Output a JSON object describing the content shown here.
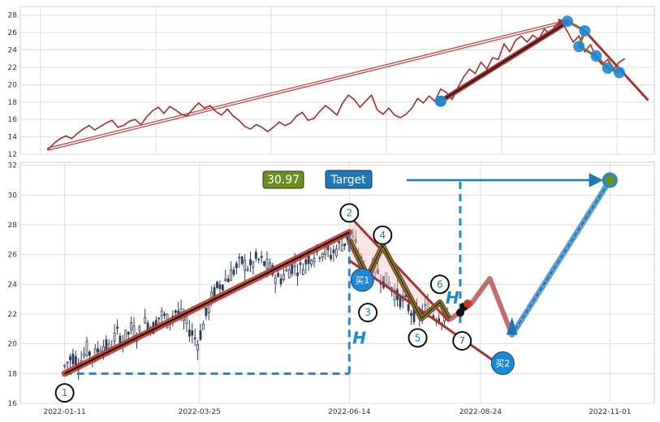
{
  "chart_data": [
    {
      "type": "line",
      "panel": "overview",
      "ylim": [
        12,
        29
      ],
      "yticks": [
        12,
        14,
        16,
        18,
        20,
        22,
        24,
        26,
        28
      ],
      "price": [
        12.6,
        13.3,
        13.8,
        14.1,
        13.8,
        14.4,
        14.9,
        15.3,
        14.8,
        15.2,
        15.6,
        15.9,
        15.1,
        15.3,
        15.8,
        16.0,
        15.4,
        16.3,
        17.0,
        17.4,
        16.7,
        17.5,
        17.1,
        16.6,
        16.4,
        17.2,
        17.9,
        17.3,
        17.6,
        16.9,
        16.5,
        17.2,
        16.4,
        15.9,
        15.2,
        14.9,
        15.4,
        15.1,
        14.6,
        15.1,
        15.7,
        15.3,
        15.6,
        16.4,
        16.8,
        15.9,
        16.1,
        16.9,
        17.6,
        17.1,
        16.5,
        17.9,
        18.8,
        18.3,
        17.4,
        18.1,
        18.8,
        17.1,
        16.6,
        17.3,
        16.5,
        16.2,
        16.6,
        17.3,
        18.4,
        17.9,
        18.7,
        18.1,
        19.5,
        19.1,
        18.3,
        19.7,
        20.9,
        21.8,
        21.3,
        22.6,
        21.8,
        23.1,
        22.9,
        24.7,
        23.8,
        25.1,
        25.6,
        24.9,
        25.7,
        25.2,
        26.4,
        25.8,
        26.9,
        27.2,
        26.1,
        24.9,
        25.6,
        23.8,
        24.6,
        23.1,
        22.3,
        22.9,
        21.8,
        22.6,
        23.0
      ],
      "price_x_range": [
        0,
        100
      ],
      "overview_trend": {
        "x": [
          0,
          90
        ],
        "y": [
          12.6,
          27.3
        ]
      },
      "fit_line": {
        "x": [
          68,
          90
        ],
        "y": [
          18.1,
          27.2
        ]
      },
      "swings": {
        "x": [
          90,
          93,
          92,
          95,
          97,
          99
        ],
        "y": [
          27.3,
          26.2,
          24.4,
          23.3,
          21.9,
          21.4
        ]
      },
      "projection": {
        "x": [
          93,
          104
        ],
        "y": [
          26.2,
          18.2
        ]
      }
    },
    {
      "type": "candlestick",
      "panel": "main",
      "ylim": [
        16,
        32.2
      ],
      "yticks": [
        16,
        18,
        20,
        22,
        24,
        26,
        28,
        30,
        32
      ],
      "x_tick_labels": [
        "2022-01-11",
        "2022-03-25",
        "2022-06-14",
        "2022-08-24",
        "2022-11-01"
      ],
      "x_tick_days": [
        10,
        83,
        164,
        235,
        305
      ],
      "days_range": [
        -14,
        329
      ],
      "close_path": [
        [
          10,
          18.5
        ],
        [
          14,
          19.2
        ],
        [
          18,
          18.7
        ],
        [
          22,
          19.6
        ],
        [
          26,
          19.1
        ],
        [
          30,
          20.0
        ],
        [
          34,
          19.6
        ],
        [
          38,
          20.7
        ],
        [
          42,
          20.2
        ],
        [
          46,
          21.0
        ],
        [
          50,
          20.6
        ],
        [
          54,
          21.5
        ],
        [
          58,
          21.1
        ],
        [
          62,
          22.0
        ],
        [
          66,
          21.5
        ],
        [
          70,
          22.2
        ],
        [
          74,
          21.7
        ],
        [
          78,
          20.9
        ],
        [
          82,
          20.1
        ],
        [
          86,
          21.7
        ],
        [
          90,
          23.2
        ],
        [
          94,
          24.0
        ],
        [
          98,
          24.4
        ],
        [
          102,
          25.0
        ],
        [
          106,
          25.5
        ],
        [
          110,
          25.1
        ],
        [
          114,
          25.7
        ],
        [
          118,
          25.4
        ],
        [
          122,
          24.9
        ],
        [
          126,
          24.3
        ],
        [
          130,
          24.8
        ],
        [
          134,
          25.3
        ],
        [
          138,
          25.0
        ],
        [
          142,
          25.8
        ],
        [
          146,
          26.1
        ],
        [
          150,
          26.3
        ],
        [
          154,
          26.0
        ],
        [
          158,
          26.5
        ],
        [
          162,
          26.9
        ],
        [
          164,
          27.5
        ],
        [
          166,
          27.0
        ],
        [
          168,
          26.3
        ],
        [
          170,
          25.6
        ],
        [
          172,
          24.9
        ],
        [
          174,
          24.4
        ],
        [
          178,
          25.1
        ],
        [
          182,
          24.4
        ],
        [
          186,
          24.0
        ],
        [
          190,
          23.2
        ],
        [
          194,
          22.8
        ],
        [
          198,
          22.1
        ],
        [
          202,
          21.9
        ],
        [
          206,
          22.4
        ],
        [
          210,
          22.0
        ],
        [
          214,
          21.8
        ],
        [
          216,
          21.7
        ],
        [
          218,
          21.6
        ]
      ],
      "band": 1.15,
      "labels": {
        "value": "30.97",
        "target": "Target",
        "buy1": "买1",
        "buy2": "买2",
        "h": "H"
      },
      "wave_labels": [
        "1",
        "2",
        "3",
        "4",
        "5",
        "6",
        "7"
      ],
      "wave_label_points": [
        [
          10,
          16.7
        ],
        [
          164,
          28.8
        ],
        [
          174,
          22.1
        ],
        [
          182,
          27.3
        ],
        [
          201,
          20.4
        ],
        [
          213,
          24.0
        ],
        [
          225,
          20.2
        ]
      ],
      "main_trend": {
        "x": [
          10,
          164
        ],
        "y": [
          18.0,
          27.5
        ]
      },
      "wave_zigzag": {
        "x": [
          164,
          174,
          182,
          203,
          213,
          218
        ],
        "y": [
          27.0,
          24.5,
          26.6,
          21.7,
          22.8,
          21.7
        ]
      },
      "decline_upper": {
        "x": [
          164,
          218
        ],
        "y": [
          28.6,
          21.5
        ]
      },
      "decline_lower": {
        "x": [
          164,
          244
        ],
        "y": [
          25.6,
          18.7
        ]
      },
      "buy1_point": {
        "x": 171,
        "y": 24.3
      },
      "buy2_point": {
        "x": 247,
        "y": 18.7
      },
      "projected_zigzag": {
        "x": [
          218,
          230,
          240,
          252
        ],
        "y": [
          21.6,
          22.7,
          24.4,
          20.6
        ]
      },
      "rise_to_target": {
        "x": [
          252,
          305
        ],
        "y": [
          20.6,
          31.0
        ]
      },
      "target_point": {
        "x": 305,
        "y": 31.0
      },
      "dots": {
        "x": [
          224,
          226,
          228
        ],
        "y": [
          22.1,
          22.5,
          22.7
        ]
      },
      "h_vertical": {
        "x": 164,
        "y": [
          18.0,
          27.5
        ]
      },
      "h_horizontal": {
        "x": [
          10,
          164
        ],
        "y": 18.0
      },
      "target_vertical": {
        "x": 224,
        "y": [
          21.4,
          31.0
        ]
      },
      "target_horizontal": {
        "x": [
          195,
          305
        ],
        "y": 31.0
      }
    }
  ]
}
